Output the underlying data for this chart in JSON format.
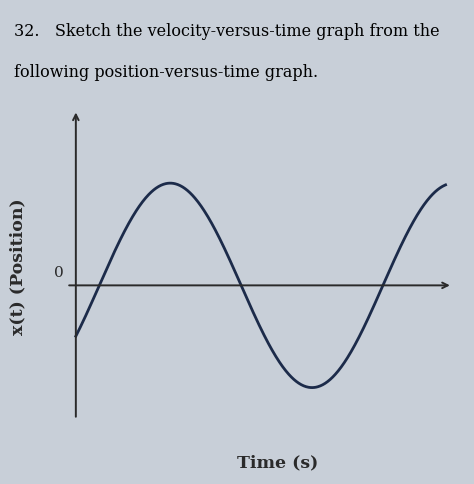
{
  "title_line1": "32.   Sketch the velocity-versus-time graph from the",
  "title_line2": "following position-versus-time graph.",
  "xlabel": "Time (s)",
  "ylabel": "x(t) (Position)",
  "bg_color": "#c8cfd8",
  "curve_color": "#1c2b4a",
  "axis_color": "#2a2a2a",
  "curve_linewidth": 2.0,
  "title_fontsize": 11.5,
  "label_fontsize": 12.5,
  "zero_label_fontsize": 11,
  "xlim": [
    -0.3,
    8.0
  ],
  "ylim": [
    -2.2,
    2.8
  ],
  "yaxis_x": 0.0,
  "xaxis_y": 0.0,
  "curve_t_start": 0.0,
  "curve_t_end": 7.8,
  "curve_amplitude": 1.6,
  "curve_period_scale": 1.05,
  "curve_phase": -0.52
}
